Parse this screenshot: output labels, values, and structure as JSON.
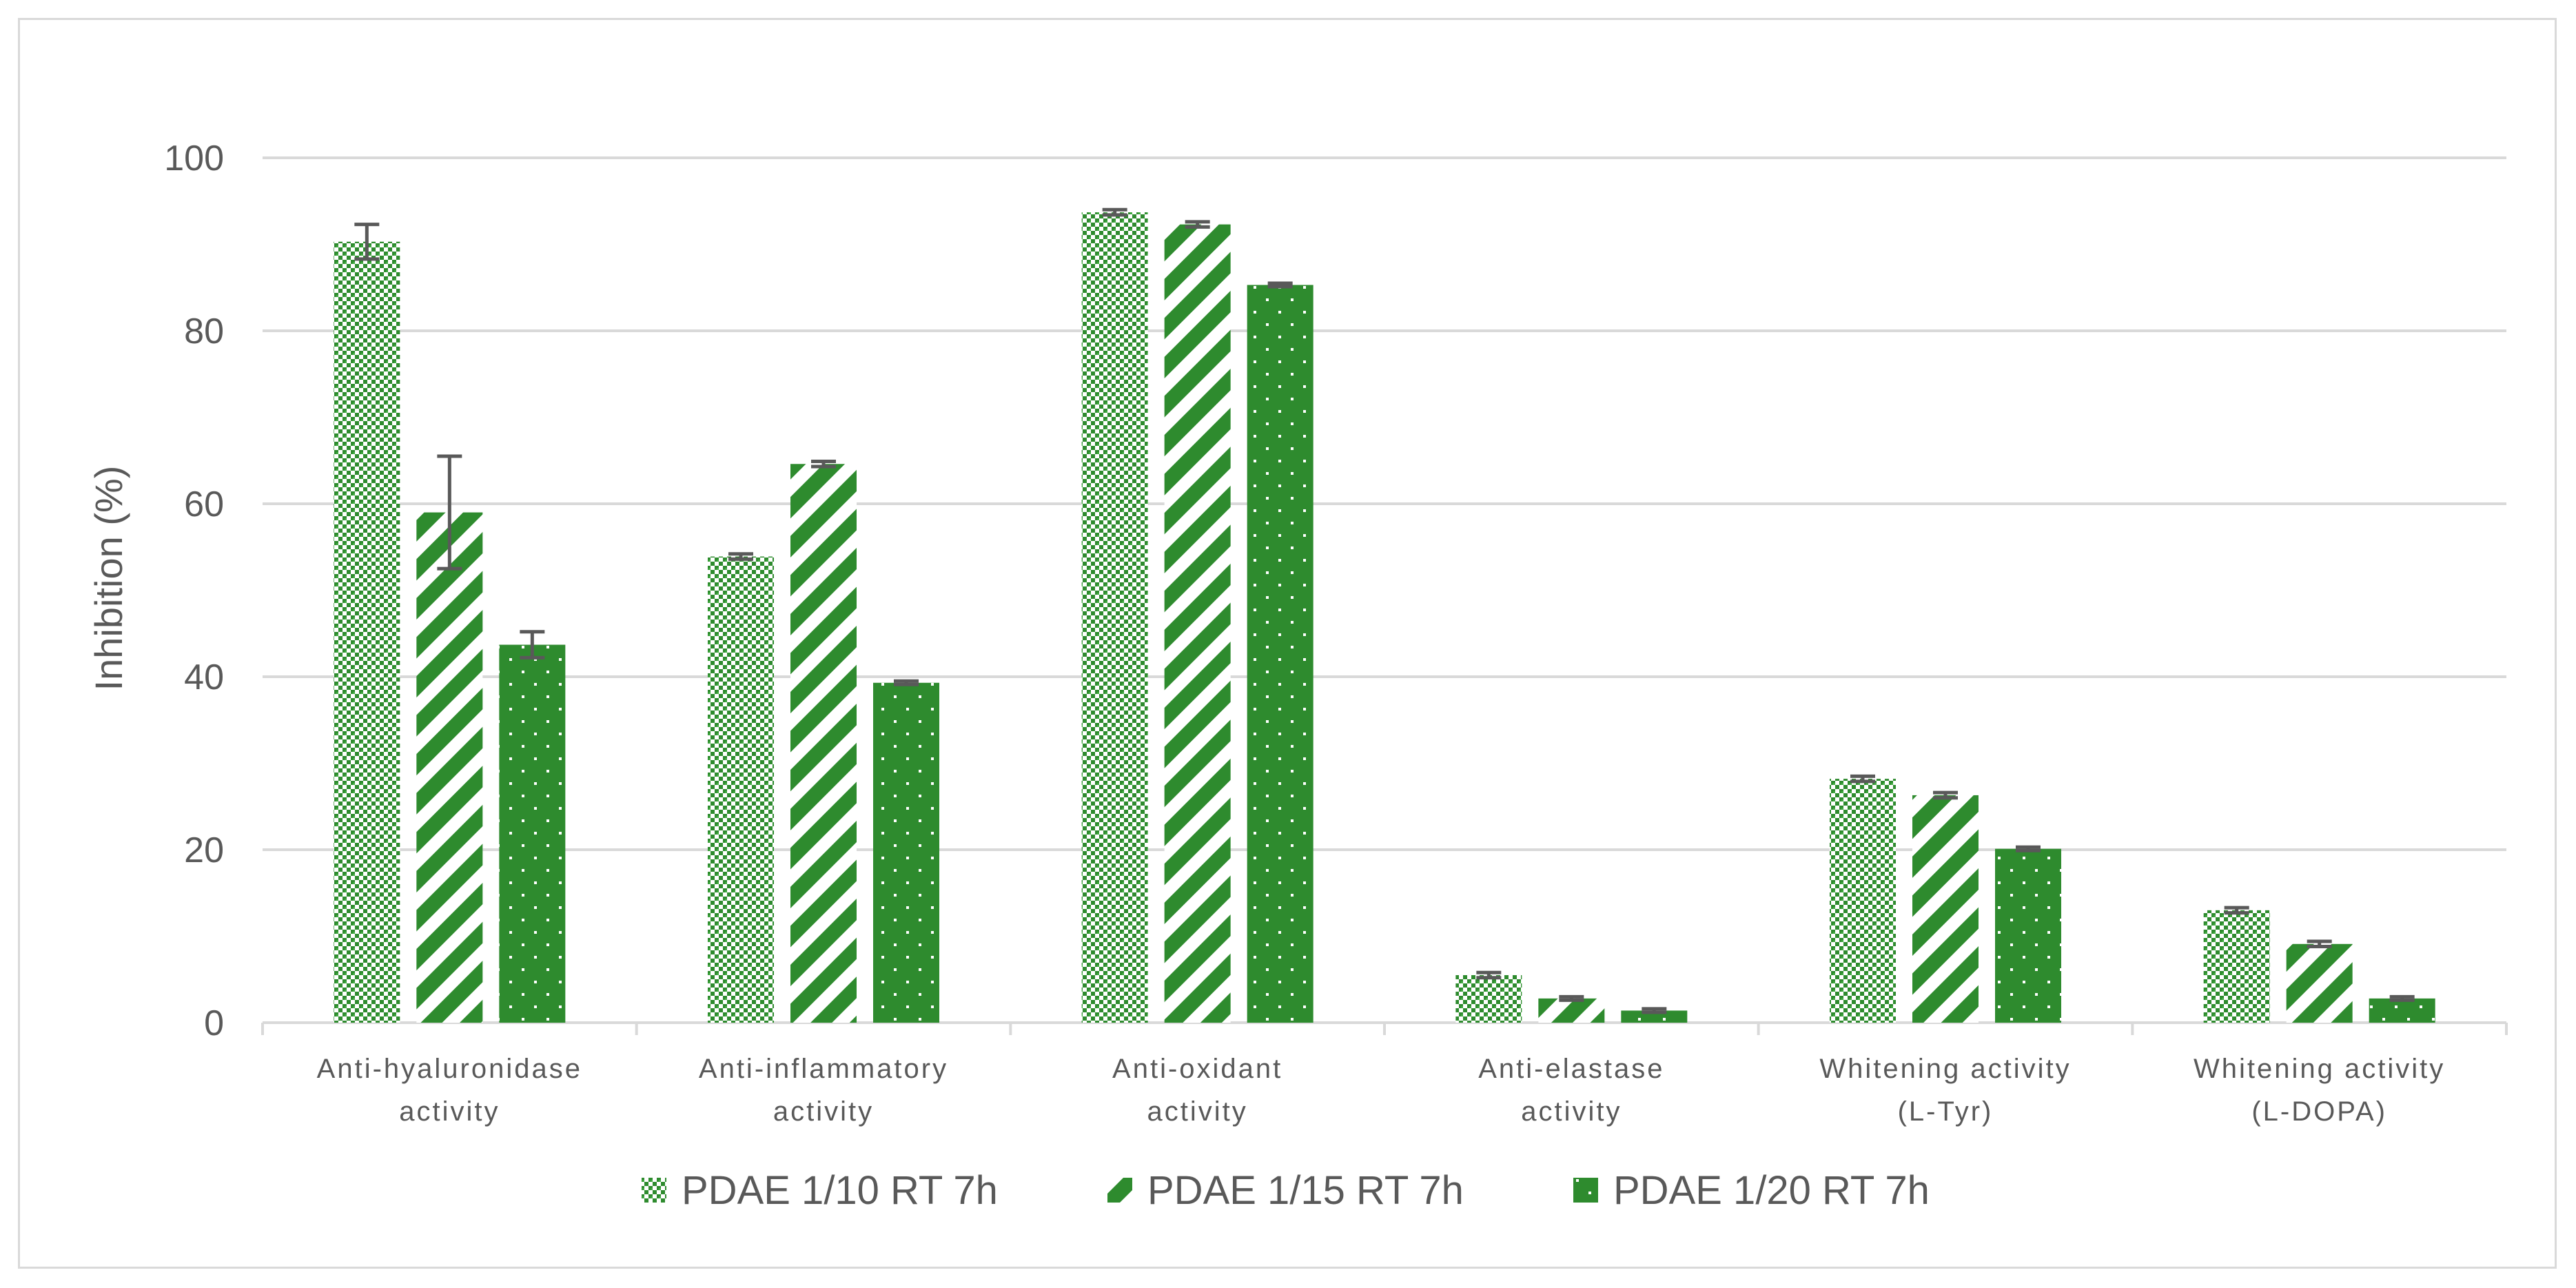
{
  "chart_data": {
    "type": "bar",
    "title": "",
    "xlabel": "",
    "ylabel": "Inhibition (%)",
    "ylim": [
      0,
      100
    ],
    "yticks": [
      0,
      20,
      40,
      60,
      80,
      100
    ],
    "grid": true,
    "legend_position": "bottom",
    "categories": [
      [
        "Anti-hyaluronidase",
        "activity"
      ],
      [
        "Anti-inflammatory",
        "activity"
      ],
      [
        "Anti-oxidant",
        "activity"
      ],
      [
        "Anti-elastase",
        "activity"
      ],
      [
        "Whitening activity",
        "(L-Tyr)"
      ],
      [
        "Whitening activity",
        "(L-DOPA)"
      ]
    ],
    "series": [
      {
        "name": "PDAE 1/10 RT 7h",
        "pattern": "checker",
        "color": "#2e8b2e",
        "values": [
          90.3,
          53.9,
          93.7,
          5.5,
          28.2,
          13.0
        ],
        "errors": [
          2.0,
          0.3,
          0.3,
          0.3,
          0.3,
          0.3
        ]
      },
      {
        "name": "PDAE 1/15 RT 7h",
        "pattern": "diagonal",
        "color": "#2e8b2e",
        "values": [
          59.0,
          64.6,
          92.3,
          2.8,
          26.3,
          9.1
        ],
        "errors": [
          6.5,
          0.3,
          0.3,
          0.2,
          0.3,
          0.3
        ]
      },
      {
        "name": "PDAE 1/20 RT 7h",
        "pattern": "dots",
        "color": "#2e8b2e",
        "values": [
          43.7,
          39.3,
          85.3,
          1.4,
          20.1,
          2.8
        ],
        "errors": [
          1.5,
          0.2,
          0.2,
          0.2,
          0.2,
          0.2
        ]
      }
    ]
  }
}
